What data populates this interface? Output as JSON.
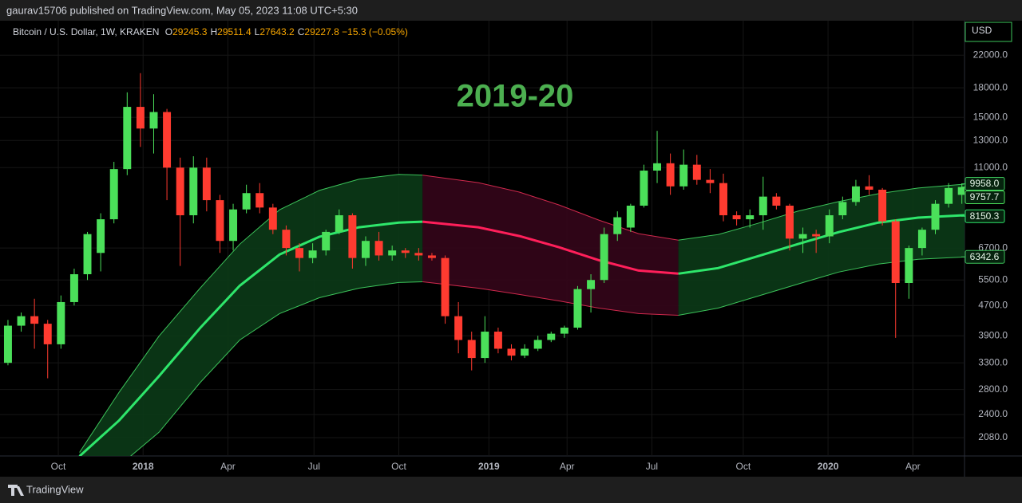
{
  "chart_data": {
    "type": "candlestick",
    "header": "gaurav15706 published on TradingView.com, May 05, 2023 11:08 UTC+5:30",
    "symbol": "Bitcoin / U.S. Dollar, 1W, KRAKEN",
    "legend_values": [
      {
        "key": "O",
        "value": "29245.3"
      },
      {
        "key": "H",
        "value": "29511.4"
      },
      {
        "key": "L",
        "value": "27643.2"
      },
      {
        "key": "C",
        "value": "29227.8"
      }
    ],
    "change": "−15.3 (−0.05%)",
    "title": "2019-20",
    "currency": "USD",
    "footer": "TradingView",
    "log_scale": true,
    "grid": true,
    "up_color": "#4be05a",
    "down_color": "#ff3b30",
    "ylim": [
      1858,
      27220
    ],
    "yticks": [
      {
        "value": 2080,
        "label": "2080.0"
      },
      {
        "value": 2400,
        "label": "2400.0"
      },
      {
        "value": 2800,
        "label": "2800.0"
      },
      {
        "value": 3300,
        "label": "3300.0"
      },
      {
        "value": 3900,
        "label": "3900.0"
      },
      {
        "value": 4700,
        "label": "4700.0"
      },
      {
        "value": 5500,
        "label": "5500.0"
      },
      {
        "value": 6700,
        "label": "6700.0"
      },
      {
        "value": 11000,
        "label": "11000.0"
      },
      {
        "value": 13000,
        "label": "13000.0"
      },
      {
        "value": 15000,
        "label": "15000.0"
      },
      {
        "value": 18000,
        "label": "18000.0"
      },
      {
        "value": 22000,
        "label": "22000.0"
      }
    ],
    "xlim": [
      -0.6,
      72.2
    ],
    "xticks": [
      {
        "value": 3.8,
        "label": "Oct"
      },
      {
        "value": 10.2,
        "label": "2018"
      },
      {
        "value": 16.6,
        "label": "Apr"
      },
      {
        "value": 23.1,
        "label": "Jul"
      },
      {
        "value": 29.5,
        "label": "Oct"
      },
      {
        "value": 36.3,
        "label": "2019"
      },
      {
        "value": 42.2,
        "label": "Apr"
      },
      {
        "value": 48.6,
        "label": "Jul"
      },
      {
        "value": 55.5,
        "label": "Oct"
      },
      {
        "value": 61.9,
        "label": "2020"
      },
      {
        "value": 68.3,
        "label": "Apr"
      }
    ],
    "open": [
      3300,
      4150,
      4400,
      4200,
      3700,
      4800,
      5700,
      6500,
      8000,
      10900,
      16000,
      14000,
      15500,
      11000,
      8200,
      11000,
      9000,
      7000,
      8500,
      9400,
      8600,
      7500,
      6700,
      6300,
      6600,
      7400,
      8200,
      6300,
      7000,
      6400,
      6600,
      6500,
      6400,
      6300,
      4400,
      3800,
      3400,
      4000,
      3600,
      3450,
      3600,
      3800,
      3950,
      4100,
      5200,
      5500,
      7300,
      7600,
      8700,
      10800,
      11300,
      9800,
      11200,
      10200,
      10000,
      8200,
      8000,
      8200,
      9200,
      8700,
      7100,
      7300,
      7200,
      8200,
      8900,
      9800,
      9600,
      7900,
      5400,
      6700,
      7500,
      8800,
      9300
    ],
    "high": [
      4300,
      4500,
      4900,
      4300,
      5000,
      5900,
      7400,
      8300,
      11400,
      17500,
      19700,
      17300,
      15800,
      11700,
      11800,
      11700,
      9300,
      8800,
      9900,
      10000,
      8800,
      7700,
      6900,
      6900,
      7500,
      8500,
      8300,
      7200,
      7400,
      6800,
      6700,
      6700,
      6500,
      6400,
      4800,
      4000,
      4400,
      4100,
      3700,
      3700,
      3900,
      4000,
      4150,
      5300,
      5700,
      7600,
      8400,
      8800,
      11200,
      13800,
      12000,
      12300,
      11900,
      10900,
      10600,
      8400,
      8500,
      10400,
      9400,
      8800,
      7600,
      7500,
      8500,
      9200,
      10200,
      10500,
      9700,
      8000,
      6800,
      7600,
      9000,
      10000,
      9960
    ],
    "low": [
      3250,
      4000,
      3600,
      3000,
      3600,
      4700,
      5500,
      5800,
      7800,
      10500,
      12500,
      12000,
      9000,
      6000,
      7800,
      8400,
      6500,
      6600,
      8300,
      8300,
      7300,
      6400,
      5800,
      6100,
      6400,
      7300,
      5900,
      6000,
      6200,
      6200,
      6300,
      6200,
      6200,
      4200,
      3500,
      3150,
      3300,
      3500,
      3350,
      3400,
      3550,
      3750,
      3850,
      4050,
      4500,
      5400,
      7000,
      7400,
      8600,
      10000,
      9300,
      9600,
      9900,
      9400,
      7900,
      7700,
      7600,
      7500,
      8500,
      6600,
      6500,
      6500,
      6900,
      8000,
      8700,
      9300,
      7700,
      3850,
      4900,
      6400,
      7300,
      8600,
      8800
    ],
    "close": [
      4150,
      4400,
      4200,
      3700,
      4800,
      5700,
      7300,
      8000,
      10900,
      16000,
      14000,
      15500,
      11000,
      8200,
      11000,
      9000,
      7000,
      8500,
      9400,
      8600,
      7500,
      6700,
      6300,
      6600,
      7400,
      8200,
      6300,
      7000,
      6400,
      6600,
      6500,
      6400,
      6300,
      4400,
      3800,
      3400,
      4000,
      3600,
      3450,
      3600,
      3800,
      3950,
      4100,
      5200,
      5500,
      7300,
      8100,
      8700,
      10800,
      11300,
      9800,
      11200,
      10200,
      10000,
      8200,
      8000,
      8200,
      9200,
      8700,
      7100,
      7300,
      7200,
      8200,
      8900,
      9800,
      9600,
      7900,
      5400,
      6700,
      7500,
      8800,
      9700,
      9757.7
    ],
    "bands": [
      {
        "fill": "#0b3a17",
        "line_color": "#3cc35a",
        "basis_color": "#2ee66b",
        "x": [
          5.4,
          8.4,
          11.4,
          14.5,
          17.5,
          20.5,
          23.5,
          26.5,
          29.5,
          31.3
        ],
        "upper": [
          1900,
          2755,
          3890,
          5230,
          6860,
          8480,
          9555,
          10240,
          10550,
          10500
        ],
        "basis": [
          1855,
          2315,
          3040,
          4090,
          5310,
          6435,
          7180,
          7615,
          7840,
          7880
        ],
        "lower": [
          1500,
          1750,
          2150,
          2920,
          3800,
          4470,
          4930,
          5230,
          5415,
          5440
        ]
      },
      {
        "fill": "#34061a",
        "line_color": "#d0294d",
        "basis_color": "#ff1f5a",
        "x": [
          31.3,
          35.5,
          38.6,
          41.6,
          44.6,
          47.6,
          50.6
        ],
        "upper": [
          10500,
          10030,
          9460,
          8740,
          7960,
          7320,
          7035
        ],
        "basis": [
          7880,
          7615,
          7215,
          6730,
          6215,
          5830,
          5720
        ],
        "lower": [
          5440,
          5230,
          5030,
          4835,
          4625,
          4470,
          4425
        ]
      },
      {
        "fill": "#0b3a17",
        "line_color": "#3cc35a",
        "basis_color": "#2ee66b",
        "x": [
          50.6,
          53.6,
          56.6,
          59.6,
          62.7,
          65.7,
          68.7,
          72.2
        ],
        "upper": [
          7035,
          7280,
          7800,
          8405,
          8920,
          9365,
          9700,
          9935
        ],
        "basis": [
          5720,
          5920,
          6370,
          6860,
          7390,
          7840,
          8080,
          8200
        ],
        "lower": [
          4425,
          4625,
          4980,
          5360,
          5775,
          6070,
          6250,
          6340
        ]
      }
    ],
    "price_labels": [
      {
        "value": 9958,
        "label": "9958.0",
        "color": "#3cc35a"
      },
      {
        "value": 9757.7,
        "label": "9757.7",
        "color": "#4be05a"
      },
      {
        "value": 8150.3,
        "label": "8150.3",
        "color": "#2ee66b"
      },
      {
        "value": 6342.6,
        "label": "6342.6",
        "color": "#3cc35a"
      }
    ]
  }
}
